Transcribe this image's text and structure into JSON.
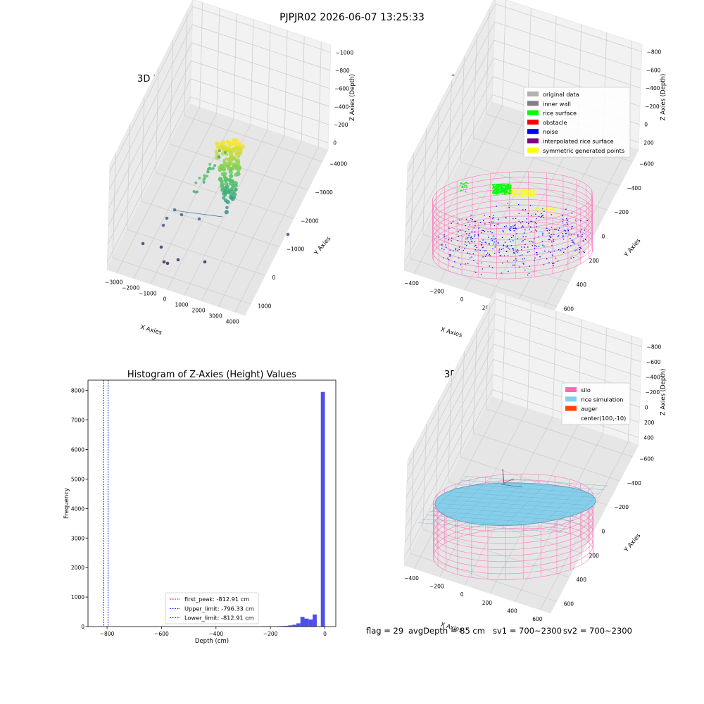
{
  "figure": {
    "suptitle": "PJPJR02 2026-06-07 13:25:33"
  },
  "status": {
    "flag": "flag = 29",
    "avg_depth": "avgDepth = 85 cm",
    "sv1": "sv1 = 700~2300",
    "sv2": "sv2 = 700~2300"
  },
  "colors": {
    "original_data": "#b0b0b0",
    "inner_wall": "#808080",
    "rice_surface": "#00ff00",
    "obstacle": "#ff0000",
    "noise": "#0000ff",
    "interpolated_rice_surface": "#800080",
    "symmetric_generated_points": "#ffff00",
    "silo": "#ff69b4",
    "rice_simulation": "#87ceeb",
    "auger": "#ff4500",
    "histogram_bar": "#4444ee",
    "first_peak_line": "#ff0000",
    "limit_line": "#0000ff"
  },
  "chart_data": [
    {
      "type": "scatter",
      "projection": "3d",
      "title": "3D Plot of Silo Interior(row data)",
      "xlabel": "X Axies",
      "ylabel": "Y Axies",
      "zlabel": "Z Axies (Depth)",
      "x_ticks": [
        -3000,
        -2000,
        -1000,
        0,
        1000,
        2000,
        3000,
        4000
      ],
      "y_ticks": [
        1000,
        0,
        -1000,
        -2000,
        -3000,
        -4000
      ],
      "z_ticks": [
        0,
        -200,
        -400,
        -600,
        -800,
        -1000
      ],
      "colormap": "viridis",
      "grid": true
    },
    {
      "type": "scatter",
      "projection": "3d",
      "title": "3D classify of Silo Interior",
      "xlabel": "X Axies",
      "ylabel": "Y Axies",
      "zlabel": "Z Axies (Depth)",
      "x_ticks": [
        -400,
        -200,
        0,
        200,
        400,
        600
      ],
      "y_ticks": [
        600,
        400,
        200,
        0,
        -200,
        -400,
        -600
      ],
      "z_ticks": [
        200,
        0,
        -200,
        -400,
        -600,
        -800
      ],
      "legend": [
        "original data",
        "inner wall",
        "rice surface",
        "obstacle",
        "noise",
        "interpolated rice surface",
        "symmetric generated points"
      ],
      "legend_position": "top-right",
      "grid": true
    },
    {
      "type": "bar",
      "title": "Histogram of Z-Axies (Height) Values",
      "xlabel": "Depth (cm)",
      "ylabel": "Frequency",
      "xlim": [
        -870,
        40
      ],
      "ylim": [
        0,
        8350
      ],
      "x_ticks": [
        -800,
        -600,
        -400,
        -200,
        0
      ],
      "y_ticks": [
        0,
        1000,
        2000,
        3000,
        4000,
        5000,
        6000,
        7000,
        8000
      ],
      "bins": [
        {
          "x0": -230,
          "x1": -215,
          "value": 10
        },
        {
          "x0": -215,
          "x1": -200,
          "value": 8
        },
        {
          "x0": -180,
          "x1": -165,
          "value": 12
        },
        {
          "x0": -165,
          "x1": -150,
          "value": 18
        },
        {
          "x0": -150,
          "x1": -135,
          "value": 25
        },
        {
          "x0": -135,
          "x1": -120,
          "value": 40
        },
        {
          "x0": -120,
          "x1": -105,
          "value": 60
        },
        {
          "x0": -105,
          "x1": -90,
          "value": 110
        },
        {
          "x0": -90,
          "x1": -75,
          "value": 330
        },
        {
          "x0": -75,
          "x1": -60,
          "value": 270
        },
        {
          "x0": -60,
          "x1": -45,
          "value": 240
        },
        {
          "x0": -45,
          "x1": -30,
          "value": 410
        },
        {
          "x0": -15,
          "x1": 0,
          "value": 7950
        }
      ],
      "lines": [
        {
          "label": "first_peak: -812.91 cm",
          "x": -812.91,
          "color": "#ff0000"
        },
        {
          "label": "Upper_limit: -796.33 cm",
          "x": -796.33,
          "color": "#0000ff"
        },
        {
          "label": "Lower_limit: -812.91 cm",
          "x": -812.91,
          "color": "#0000ff"
        }
      ],
      "legend_position": "lower-center"
    },
    {
      "type": "surface",
      "projection": "3d",
      "title": "3D simulation of Silo Interior",
      "xlabel": "X Axies",
      "ylabel": "Y Axies",
      "zlabel": "Z Axies (Depth)",
      "x_ticks": [
        -400,
        -200,
        0,
        200,
        400,
        600
      ],
      "y_ticks": [
        600,
        400,
        200,
        0,
        -200,
        -400,
        -600
      ],
      "z_ticks": [
        400,
        200,
        0,
        -200,
        -400,
        -600,
        -800
      ],
      "legend": [
        "silo",
        "rice simulation",
        "auger",
        "center(100,-10)"
      ],
      "legend_position": "top-right",
      "grid": true
    }
  ]
}
